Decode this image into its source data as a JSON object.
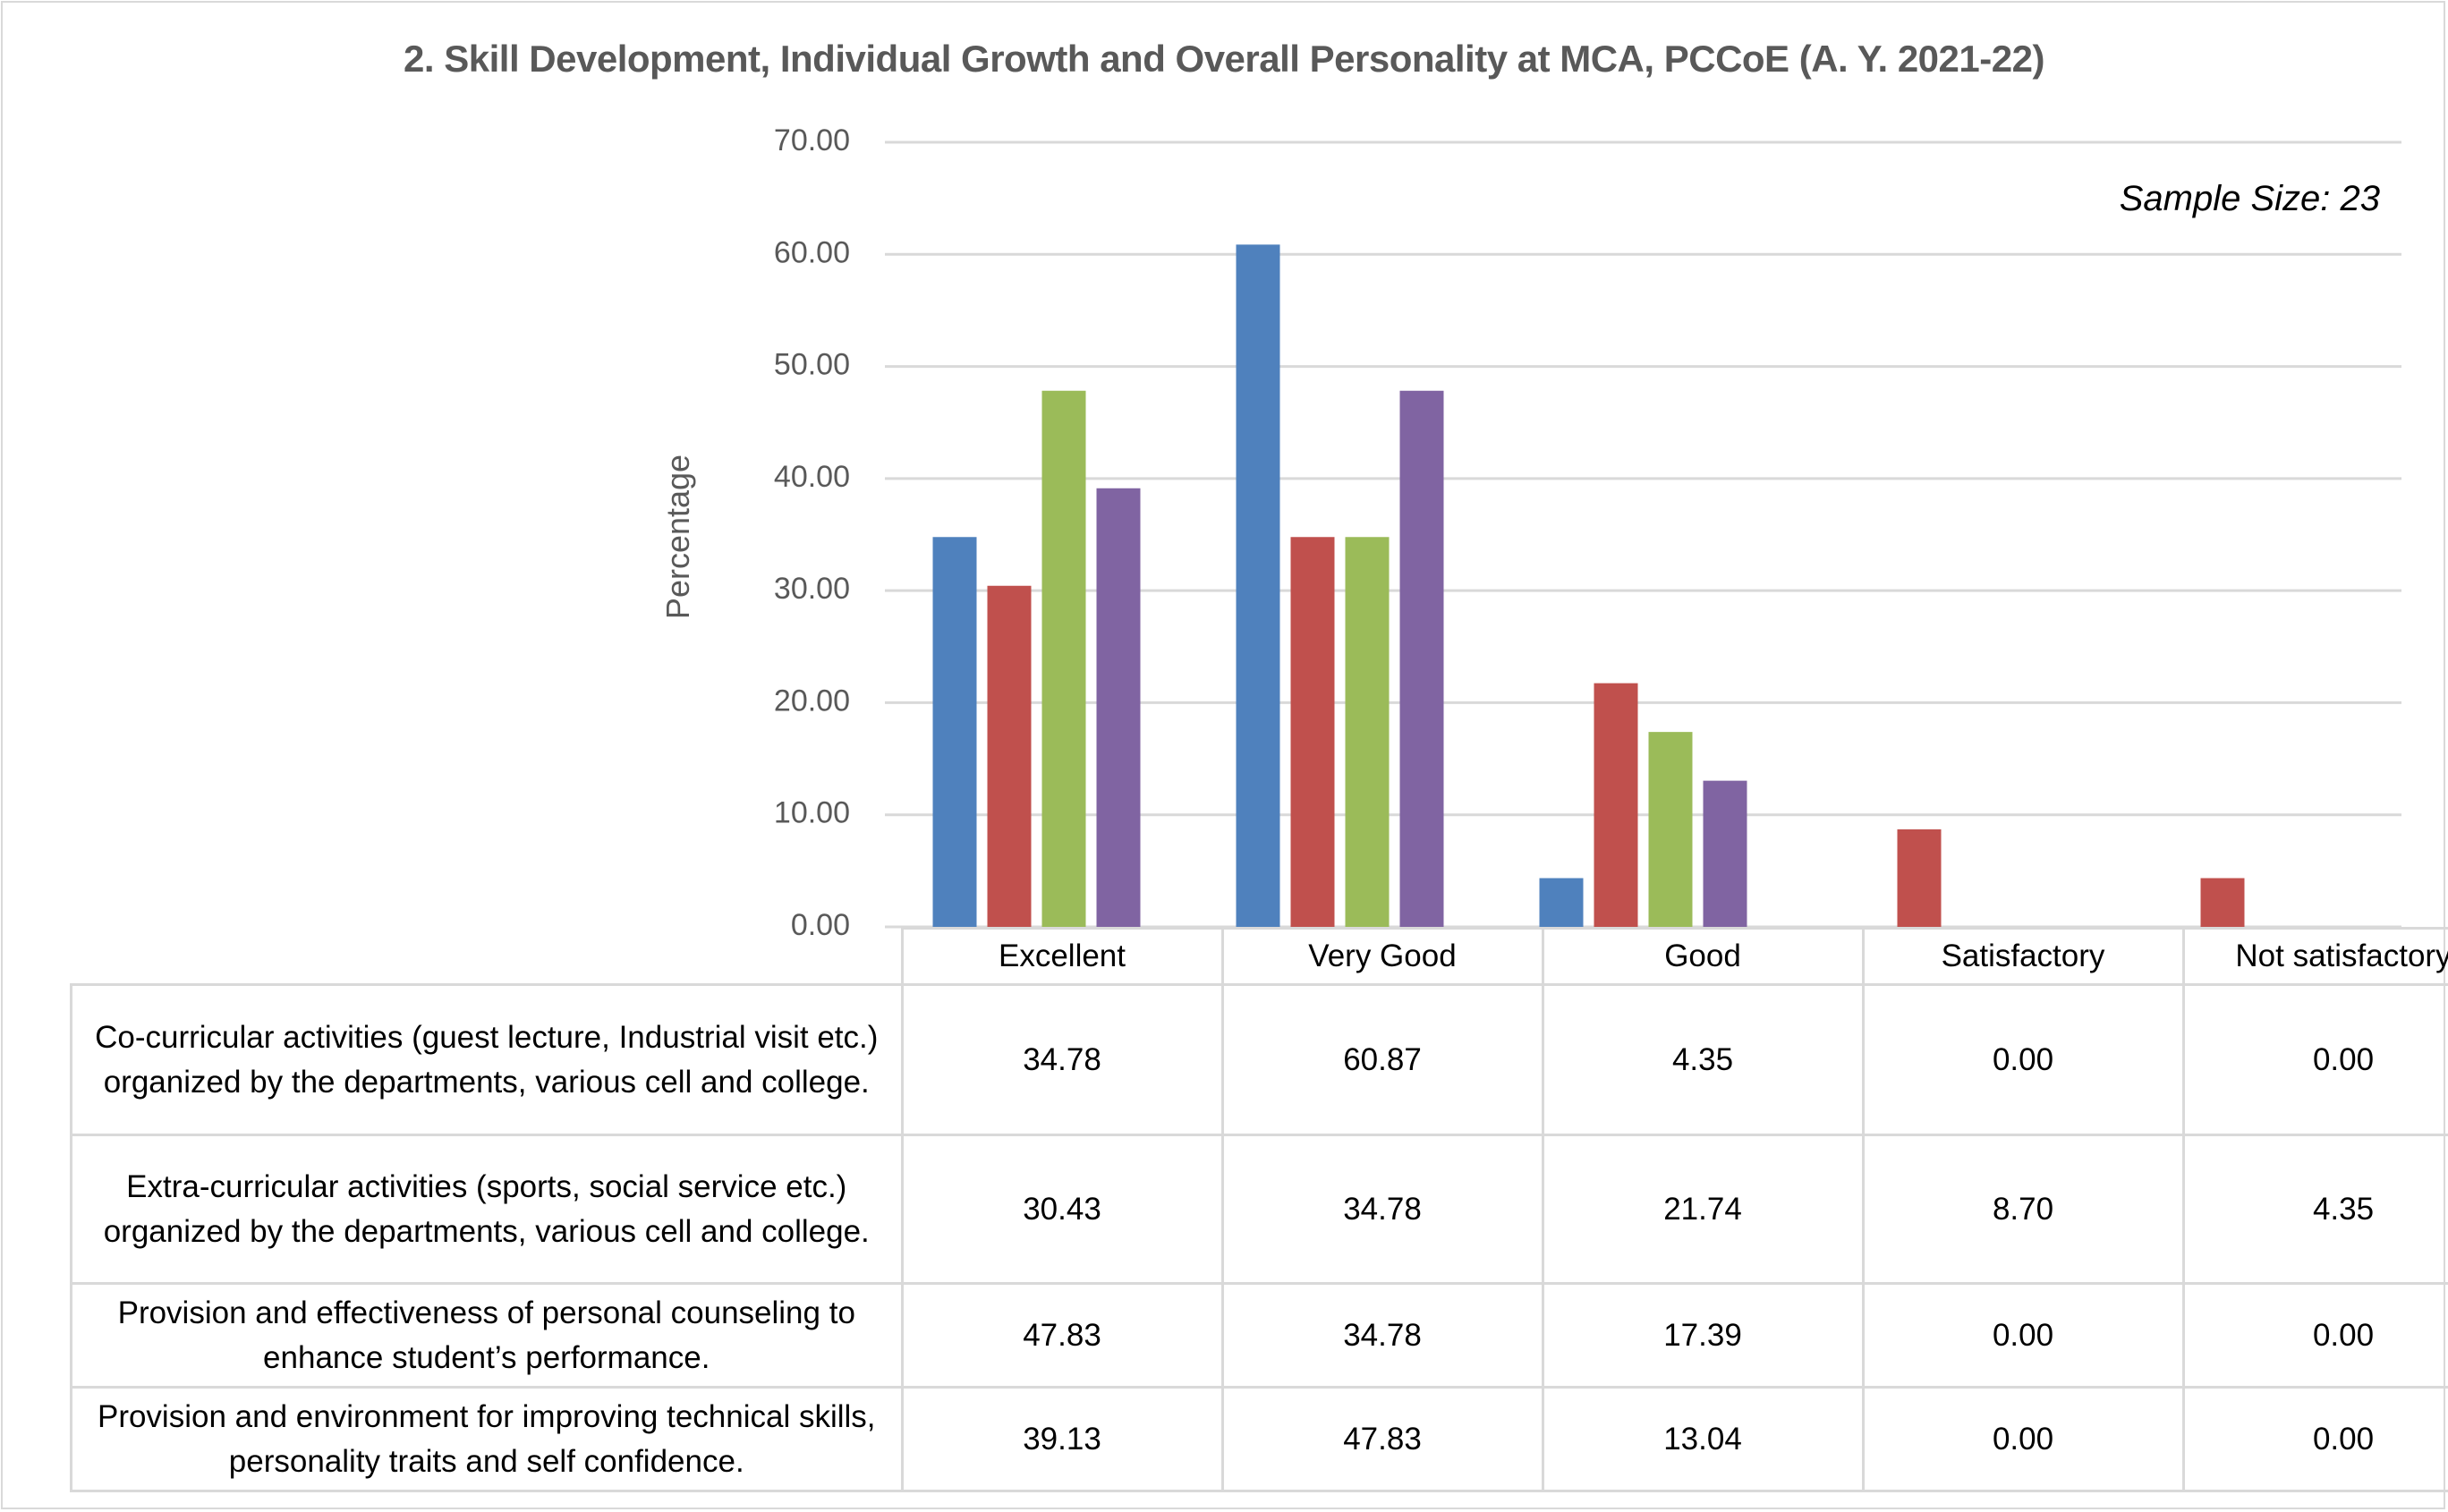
{
  "chart_data": {
    "type": "bar",
    "title": "2. Skill Development, Individual Growth and Overall Personality at MCA, PCCoE (A. Y. 2021-22)",
    "annotation": "Sample Size: 23",
    "xlabel": "",
    "ylabel": "Percentage",
    "ylim": [
      0,
      70
    ],
    "yticks": [
      0,
      10,
      20,
      30,
      40,
      50,
      60,
      70
    ],
    "ytick_labels": [
      "0.00",
      "10.00",
      "20.00",
      "30.00",
      "40.00",
      "50.00",
      "60.00",
      "70.00"
    ],
    "grid": true,
    "legend": "data-table-below",
    "categories": [
      "Excellent",
      "Very Good",
      "Good",
      "Satisfactory",
      "Not satisfactory"
    ],
    "series": [
      {
        "name": "Co-curricular activities (guest lecture, Industrial visit etc.) organized by the departments, various cell and college.",
        "color": "#4F81BD",
        "values": [
          34.78,
          60.87,
          4.35,
          0.0,
          0.0
        ],
        "labels": [
          "34.78",
          "60.87",
          "4.35",
          "0.00",
          "0.00"
        ]
      },
      {
        "name": "Extra-curricular activities (sports, social service etc.) organized by the departments, various cell and college.",
        "color": "#C0504D",
        "values": [
          30.43,
          34.78,
          21.74,
          8.7,
          4.35
        ],
        "labels": [
          "30.43",
          "34.78",
          "21.74",
          "8.70",
          "4.35"
        ]
      },
      {
        "name": "Provision and effectiveness of personal counseling to enhance student’s performance.",
        "color": "#9BBB59",
        "values": [
          47.83,
          34.78,
          17.39,
          0.0,
          0.0
        ],
        "labels": [
          "47.83",
          "34.78",
          "17.39",
          "0.00",
          "0.00"
        ]
      },
      {
        "name": "Provision and environment for improving technical skills, personality traits and self confidence.",
        "color": "#8064A2",
        "values": [
          39.13,
          47.83,
          13.04,
          0.0,
          0.0
        ],
        "labels": [
          "39.13",
          "47.83",
          "13.04",
          "0.00",
          "0.00"
        ]
      }
    ]
  },
  "colors": {
    "gridline": "#D9D9D9",
    "axis_text": "#595959",
    "title_text": "#595959"
  }
}
